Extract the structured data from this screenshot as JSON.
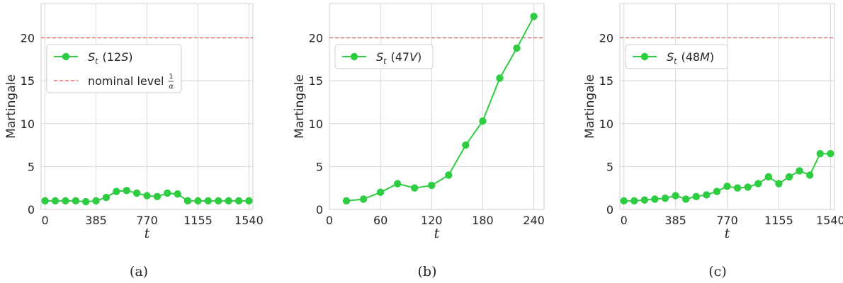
{
  "colors": {
    "series": "#2ecc40",
    "nominal_line": "#d9534f",
    "grid": "#d8d8d8",
    "spine": "#cfcfcf"
  },
  "chart_data": [
    {
      "type": "line",
      "caption": "(a)",
      "xlabel": "t",
      "ylabel": "Martingale",
      "xlim": [
        -30,
        1570
      ],
      "ylim": [
        0,
        24
      ],
      "xticks": [
        0,
        385,
        770,
        1155,
        1540
      ],
      "yticks": [
        0,
        5,
        10,
        15,
        20
      ],
      "grid": true,
      "legend_position": "upper-left",
      "hline": {
        "y": 20,
        "label": "nominal level",
        "label_fraction": [
          "1",
          "α"
        ]
      },
      "series": [
        {
          "name_symbol": "S",
          "name_sub": "t",
          "name_paren": "(12",
          "name_tag": "S",
          "name_close": ")",
          "x": [
            0,
            77,
            154,
            231,
            308,
            385,
            462,
            539,
            616,
            693,
            770,
            847,
            924,
            1001,
            1078,
            1155,
            1232,
            1309,
            1386,
            1463,
            1540
          ],
          "y": [
            1.0,
            1.0,
            1.0,
            1.0,
            0.9,
            1.0,
            1.4,
            2.1,
            2.2,
            1.9,
            1.6,
            1.5,
            1.9,
            1.8,
            1.0,
            1.0,
            1.0,
            1.0,
            1.0,
            1.0,
            1.0
          ]
        }
      ]
    },
    {
      "type": "line",
      "caption": "(b)",
      "xlabel": "t",
      "ylabel": "Martingale",
      "xlim": [
        0,
        252
      ],
      "ylim": [
        0,
        24
      ],
      "xticks": [
        0,
        60,
        120,
        180,
        240
      ],
      "yticks": [
        0,
        5,
        10,
        15,
        20
      ],
      "grid": true,
      "legend_position": "upper-left",
      "hline": {
        "y": 20
      },
      "series": [
        {
          "name_symbol": "S",
          "name_sub": "t",
          "name_paren": "(47",
          "name_tag": "V",
          "name_close": ")",
          "x": [
            20,
            40,
            60,
            80,
            100,
            120,
            140,
            160,
            180,
            200,
            220,
            240
          ],
          "y": [
            1.0,
            1.2,
            2.0,
            3.0,
            2.5,
            2.8,
            4.0,
            7.5,
            10.3,
            15.3,
            18.8,
            22.5
          ]
        }
      ]
    },
    {
      "type": "line",
      "caption": "(c)",
      "xlabel": "t",
      "ylabel": "Martingale",
      "xlim": [
        -30,
        1570
      ],
      "ylim": [
        0,
        24
      ],
      "xticks": [
        0,
        385,
        770,
        1155,
        1540
      ],
      "yticks": [
        0,
        5,
        10,
        15,
        20
      ],
      "grid": true,
      "legend_position": "upper-left",
      "hline": {
        "y": 20
      },
      "series": [
        {
          "name_symbol": "S",
          "name_sub": "t",
          "name_paren": "(48",
          "name_tag": "M",
          "name_close": ")",
          "x": [
            0,
            77,
            154,
            231,
            308,
            385,
            462,
            539,
            616,
            693,
            770,
            847,
            924,
            1001,
            1078,
            1155,
            1232,
            1309,
            1386,
            1463,
            1540
          ],
          "y": [
            1.0,
            1.0,
            1.1,
            1.2,
            1.3,
            1.6,
            1.2,
            1.5,
            1.7,
            2.1,
            2.7,
            2.5,
            2.6,
            3.0,
            3.8,
            3.0,
            3.8,
            4.5,
            4.0,
            6.5,
            6.5
          ]
        }
      ]
    }
  ]
}
